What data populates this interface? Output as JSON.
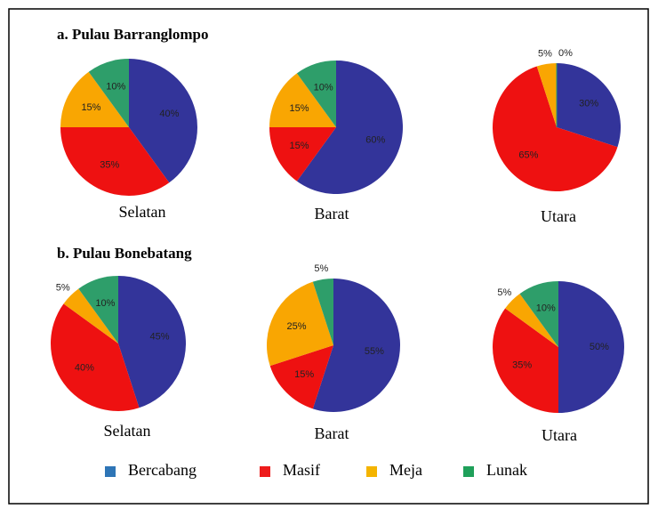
{
  "sections": [
    "a. Pulau Barranglompo",
    "b. Pulau Bonebatang"
  ],
  "legend": {
    "labels": [
      "Bercabang",
      "Masif",
      "Meja",
      "Lunak"
    ],
    "colors": [
      "#2e75b6",
      "#ee1c1c",
      "#f4b400",
      "#1fa05a"
    ]
  },
  "pie_colors": [
    "#33349a",
    "#ee1111",
    "#f9a602",
    "#2e9e6a"
  ],
  "chart_data": [
    {
      "type": "pie",
      "title": "Selatan",
      "values": [
        40,
        35,
        15,
        10
      ],
      "value_labels": [
        "40%",
        "35%",
        "15%",
        "10%"
      ]
    },
    {
      "type": "pie",
      "title": "Barat",
      "values": [
        60,
        15,
        15,
        10
      ],
      "value_labels": [
        "60%",
        "15%",
        "15%",
        "10%"
      ]
    },
    {
      "type": "pie",
      "title": "Utara",
      "values": [
        30,
        65,
        5,
        0
      ],
      "value_labels": [
        "30%",
        "65%",
        "5%",
        "0%"
      ]
    },
    {
      "type": "pie",
      "title": "Selatan",
      "values": [
        45,
        40,
        5,
        10
      ],
      "value_labels": [
        "45%",
        "40%",
        "5%",
        "10%"
      ]
    },
    {
      "type": "pie",
      "title": "Barat",
      "values": [
        55,
        15,
        25,
        5
      ],
      "value_labels": [
        "55%",
        "15%",
        "25%",
        "5%"
      ]
    },
    {
      "type": "pie",
      "title": "Utara",
      "values": [
        50,
        35,
        5,
        10
      ],
      "value_labels": [
        "50%",
        "35%",
        "5%",
        "10%"
      ]
    }
  ]
}
